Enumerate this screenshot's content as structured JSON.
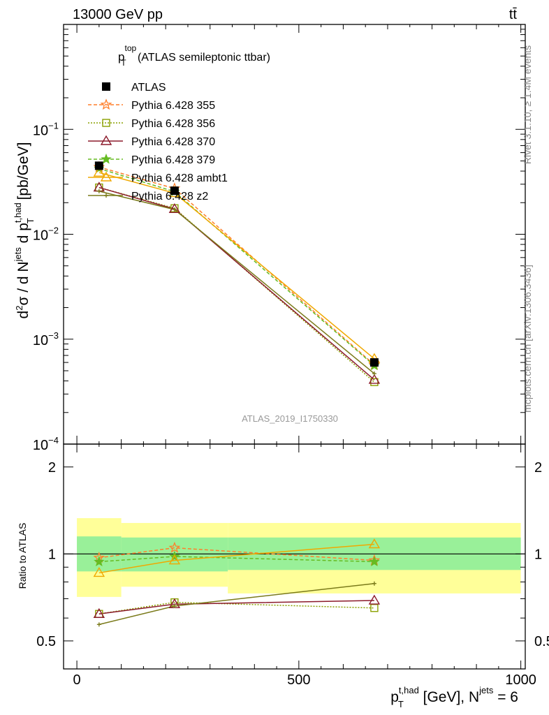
{
  "header": {
    "left": "13000 GeV pp",
    "right": "tt̄"
  },
  "plot_title": {
    "main": "p",
    "sup": "top",
    "sub": "T",
    "rest": " (ATLAS semileptonic ttbar)"
  },
  "side_labels": {
    "rivet": "Rivet 3.1.10, ≥ 1.4M events",
    "mcplots": "mcplots.cern.ch [arXiv:1306.3436]"
  },
  "watermark": "ATLAS_2019_I1750330",
  "ylabel_top": "d²σ / d N^jets d p_T^t,had [pb/GeV]",
  "ylabel_ratio": "Ratio to ATLAS",
  "xlabel": "p_T^t,had [GeV], N^jets = 6",
  "top_ticks": [
    {
      "base": "10",
      "exp": "−1",
      "value": 0.1
    },
    {
      "base": "10",
      "exp": "−2",
      "value": 0.01
    },
    {
      "base": "10",
      "exp": "−3",
      "value": 0.001
    },
    {
      "base": "10",
      "exp": "−4",
      "value": 0.0001
    }
  ],
  "ratio_ticks": [
    "0.5",
    "1",
    "2"
  ],
  "x_ticks": [
    "0",
    "500",
    "1000"
  ],
  "legend": [
    {
      "label": "ATLAS",
      "color": "#000000",
      "marker": "square-filled",
      "dash": "none"
    },
    {
      "label": "Pythia 6.428 355",
      "color": "#ff7f2a",
      "marker": "star-open",
      "dash": "5,3"
    },
    {
      "label": "Pythia 6.428 356",
      "color": "#8aa000",
      "marker": "square-open",
      "dash": "2,2"
    },
    {
      "label": "Pythia 6.428 370",
      "color": "#8b1a2b",
      "marker": "triangle-open",
      "dash": "none"
    },
    {
      "label": "Pythia 6.428 379",
      "color": "#66bb22",
      "marker": "star-filled",
      "dash": "5,3"
    },
    {
      "label": "Pythia 6.428 ambt1",
      "color": "#f0a800",
      "marker": "triangle-open",
      "dash": "none"
    },
    {
      "label": "Pythia 6.428 z2",
      "color": "#7a7a1a",
      "marker": "plus",
      "dash": "none"
    }
  ],
  "chart_data": {
    "type": "line",
    "x": [
      50,
      220,
      670
    ],
    "x_edges": [
      0,
      100,
      340,
      1000
    ],
    "xlim": [
      -30,
      1010
    ],
    "ylim": [
      0.0001,
      1.0
    ],
    "yscale": "log",
    "ratio_ylim": [
      0.4,
      2.4
    ],
    "ratio_yscale": "log",
    "reference": {
      "name": "ATLAS",
      "values": [
        0.045,
        0.026,
        0.0006
      ]
    },
    "series": [
      {
        "name": "Pythia 6.428 355",
        "values": [
          0.0437,
          0.0273,
          0.00057
        ],
        "ratio": [
          0.97,
          1.05,
          0.95
        ]
      },
      {
        "name": "Pythia 6.428 356",
        "values": [
          0.0279,
          0.0177,
          0.00039
        ],
        "ratio": [
          0.62,
          0.68,
          0.65
        ]
      },
      {
        "name": "Pythia 6.428 370",
        "values": [
          0.0279,
          0.0174,
          0.00041
        ],
        "ratio": [
          0.62,
          0.67,
          0.69
        ]
      },
      {
        "name": "Pythia 6.428 379",
        "values": [
          0.0423,
          0.0255,
          0.00056
        ],
        "ratio": [
          0.94,
          0.98,
          0.94
        ]
      },
      {
        "name": "Pythia 6.428 ambt1",
        "values": [
          0.0387,
          0.0247,
          0.00065
        ],
        "ratio": [
          0.86,
          0.95,
          1.08
        ]
      },
      {
        "name": "Pythia 6.428 z2",
        "values": [
          0.0257,
          0.0172,
          0.00047
        ],
        "ratio": [
          0.57,
          0.66,
          0.79
        ]
      }
    ],
    "uncertainty_bands": {
      "inner": [
        [
          0.87,
          1.15
        ],
        [
          0.87,
          1.14
        ],
        [
          0.88,
          1.14
        ]
      ],
      "outer": [
        [
          0.71,
          1.33
        ],
        [
          0.77,
          1.28
        ],
        [
          0.73,
          1.28
        ]
      ]
    },
    "band_colors": {
      "inner": "#99f099",
      "outer": "#ffff99"
    }
  }
}
